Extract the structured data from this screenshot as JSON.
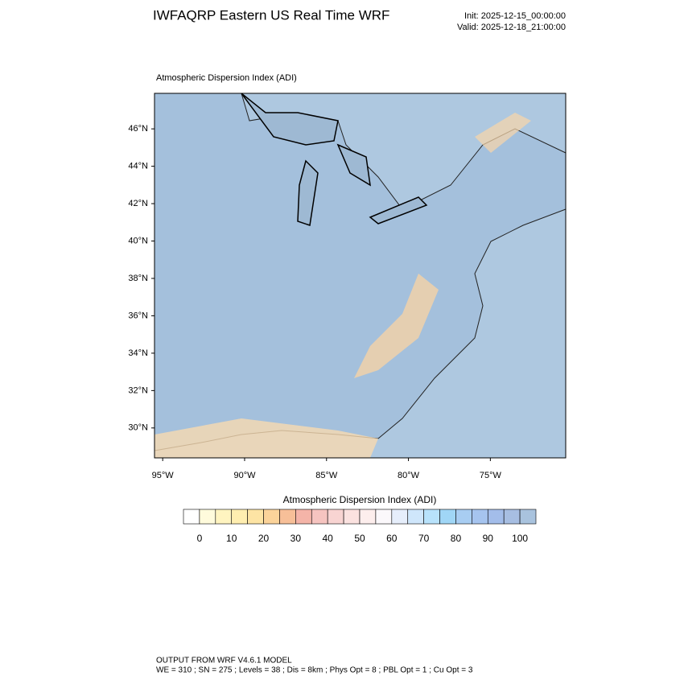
{
  "header": {
    "title": "IWFAQRP Eastern US Real Time WRF",
    "init": "Init: 2025-12-15_00:00:00",
    "valid": "Valid: 2025-12-18_21:00:00"
  },
  "map": {
    "subtitle": "Atmospheric Dispersion Index   (ADI)",
    "latlim": [
      28.4,
      47.9
    ],
    "lonlim": [
      -95.5,
      -70.4
    ],
    "latticks": [
      {
        "value": 46,
        "label": "46°N"
      },
      {
        "value": 44,
        "label": "44°N"
      },
      {
        "value": 42,
        "label": "42°N"
      },
      {
        "value": 40,
        "label": "40°N"
      },
      {
        "value": 38,
        "label": "38°N"
      },
      {
        "value": 36,
        "label": "36°N"
      },
      {
        "value": 34,
        "label": "34°N"
      },
      {
        "value": 32,
        "label": "32°N"
      },
      {
        "value": 30,
        "label": "30°N"
      }
    ],
    "lonticks": [
      {
        "value": -95,
        "label": "95°W"
      },
      {
        "value": -90,
        "label": "90°W"
      },
      {
        "value": -85,
        "label": "85°W"
      },
      {
        "value": -80,
        "label": "80°W"
      },
      {
        "value": -75,
        "label": "75°W"
      }
    ]
  },
  "colorbar": {
    "title": "Atmospheric Dispersion Index  (ADI)",
    "range": [
      -5,
      105
    ],
    "ticks": [
      0,
      10,
      20,
      30,
      40,
      50,
      60,
      70,
      80,
      90,
      100
    ],
    "colors": [
      "#ffffff",
      "#fffbdc",
      "#fff4c0",
      "#ffeeb0",
      "#fde4a4",
      "#fbd39a",
      "#f7bf98",
      "#f4b4a8",
      "#f6c4c0",
      "#f8d4d2",
      "#fbe2e0",
      "#fdeeed",
      "#fbf8fb",
      "#e6eefb",
      "#cfe6fb",
      "#b8e2fb",
      "#a0d6f6",
      "#a8cdf2",
      "#a6c4ef",
      "#a3bdea",
      "#a7bee2",
      "#a9c3de"
    ]
  },
  "footer": {
    "line1": "OUTPUT FROM WRF V4.6.1 MODEL",
    "line2": "WE = 310 ; SN = 275 ; Levels = 38 ; Dis = 8km ; Phys Opt = 8 ; PBL Opt = 1 ; Cu Opt = 3"
  }
}
